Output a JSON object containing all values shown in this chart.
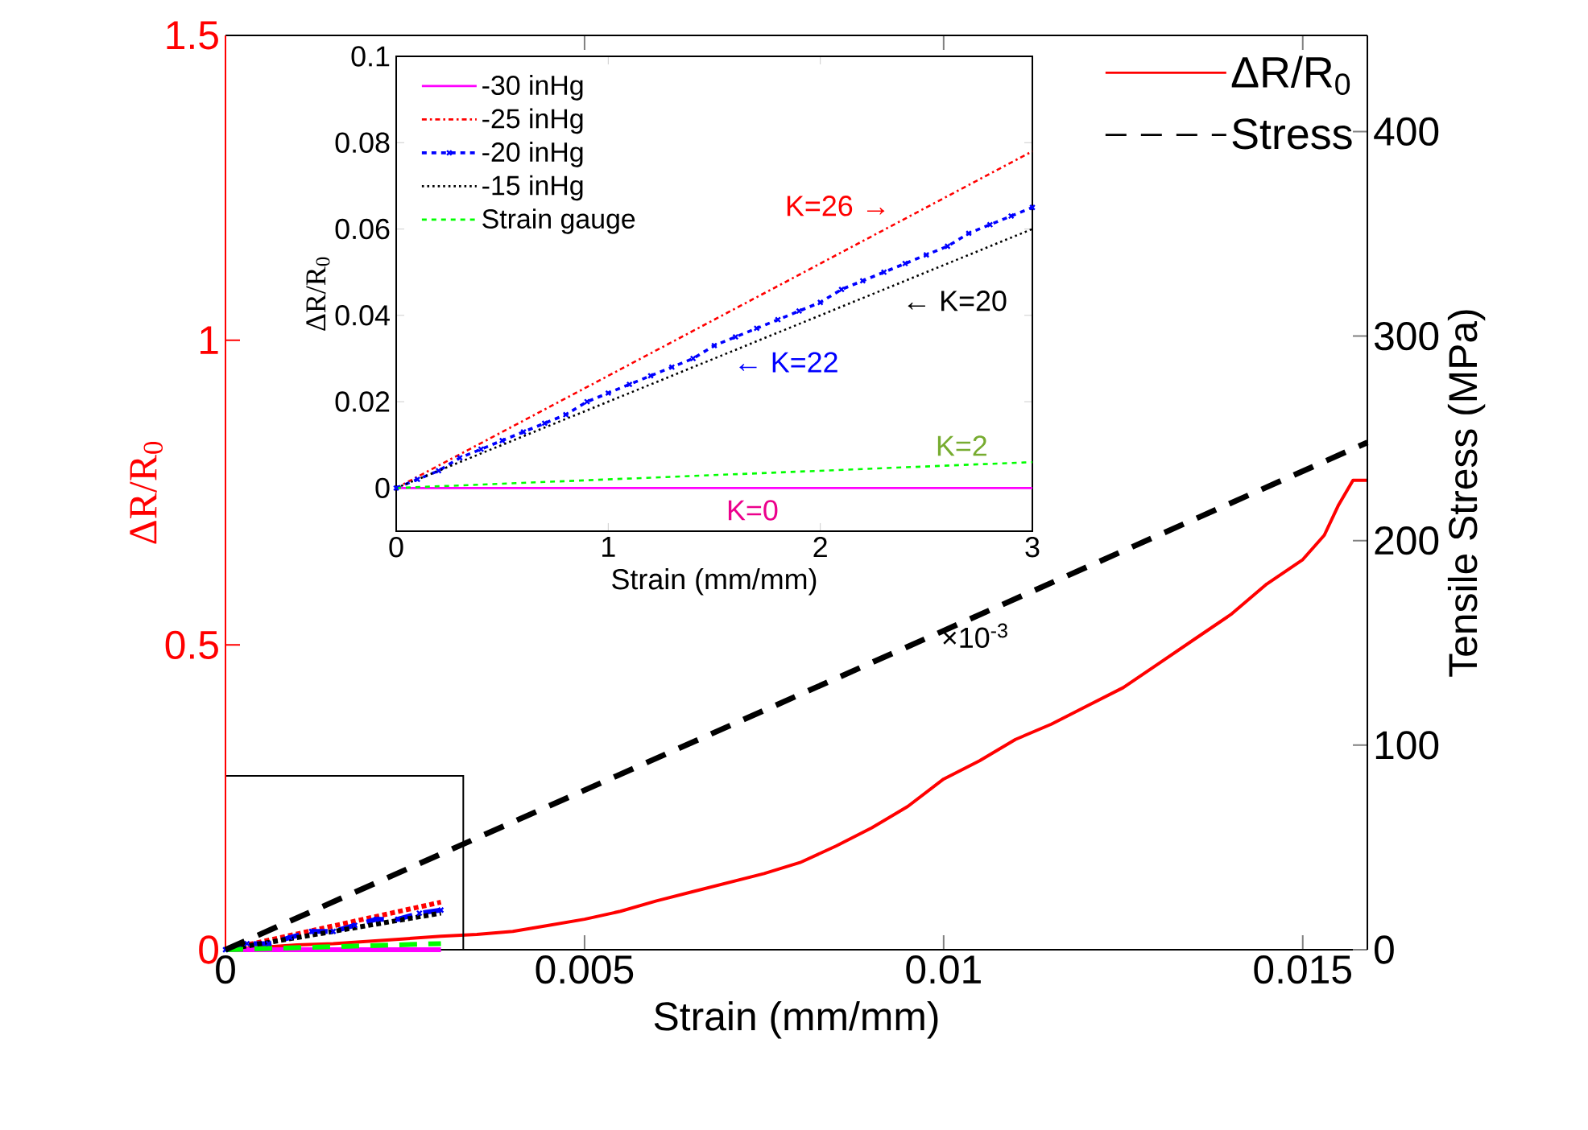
{
  "chart_data": [
    {
      "type": "line",
      "xlabel": "Strain (mm/mm)",
      "ylabel": "ΔR/R$_{0}$",
      "y2label": "Tensile Stress (MPa)",
      "xlim": [
        0,
        0.0159
      ],
      "ylim": [
        0,
        1.5
      ],
      "y2lim": [
        0,
        447
      ],
      "xticks": [
        0,
        0.005,
        0.01,
        0.015
      ],
      "yticks": [
        0,
        0.5,
        1,
        1.5
      ],
      "y2ticks": [
        0,
        100,
        200,
        300,
        400
      ],
      "legend": "top right",
      "series": [
        {
          "name": "ΔR/R$_{0}$",
          "color": "#ff0000",
          "line_style": "solid",
          "x": [
            0,
            0.0005,
            0.001,
            0.0015,
            0.002,
            0.0025,
            0.003,
            0.0035,
            0.004,
            0.0045,
            0.005,
            0.0055,
            0.006,
            0.0065,
            0.007,
            0.0075,
            0.008,
            0.0085,
            0.009,
            0.0095,
            0.01,
            0.0105,
            0.011,
            0.0115,
            0.012,
            0.0125,
            0.013,
            0.0135,
            0.014,
            0.0145,
            0.015,
            0.0153,
            0.0155,
            0.0157,
            0.0159
          ],
          "values": [
            0,
            0.004,
            0.008,
            0.01,
            0.014,
            0.018,
            0.022,
            0.025,
            0.03,
            0.04,
            0.05,
            0.063,
            0.08,
            0.095,
            0.11,
            0.125,
            0.143,
            0.17,
            0.2,
            0.235,
            0.28,
            0.31,
            0.345,
            0.37,
            0.4,
            0.43,
            0.47,
            0.51,
            0.55,
            0.6,
            0.64,
            0.68,
            0.73,
            0.77,
            0.77
          ]
        },
        {
          "name": "Stress",
          "color": "#000000",
          "line_style": "dashed",
          "axis": "y2",
          "x": [
            0,
            0.0159
          ],
          "values": [
            0,
            248
          ]
        },
        {
          "color": "#ff00ff",
          "line_style": "solid",
          "x": [
            0,
            0.003
          ],
          "values": [
            0,
            0
          ]
        },
        {
          "color": "#ff0000",
          "line_style": "dashdot",
          "x": [
            0,
            0.003
          ],
          "values": [
            0,
            0.078
          ]
        },
        {
          "color": "#0000ff",
          "line_style": "dashed",
          "marker": "cross",
          "x": [
            0,
            0.0003,
            0.0006,
            0.0009,
            0.0012,
            0.0015,
            0.0018,
            0.0021,
            0.0024,
            0.0027,
            0.003
          ],
          "values": [
            0,
            0.01,
            0.01,
            0.02,
            0.03,
            0.03,
            0.04,
            0.05,
            0.05,
            0.06,
            0.065
          ]
        },
        {
          "color": "#000000",
          "line_style": "dotted",
          "x": [
            0,
            0.003
          ],
          "values": [
            0,
            0.06
          ]
        },
        {
          "color": "#00ff00",
          "line_style": "dashed",
          "x": [
            0,
            0.003
          ],
          "values": [
            0,
            0.01
          ]
        }
      ]
    },
    {
      "type": "line",
      "xlabel": "Strain (mm/mm)",
      "ylabel": "ΔR/R$_{0}$",
      "xlim": [
        0,
        3
      ],
      "ylim": [
        -0.01,
        0.1
      ],
      "xticks": [
        0,
        1,
        2,
        3
      ],
      "yticks": [
        0,
        0.02,
        0.04,
        0.06,
        0.08,
        0.1
      ],
      "legend": "top left",
      "series": [
        {
          "name": "-30 inHg",
          "color": "#ff00ff",
          "line_style": "solid",
          "x": [
            0,
            3
          ],
          "values": [
            0,
            0
          ]
        },
        {
          "name": "-25 inHg",
          "color": "#ff0000",
          "line_style": "dashdot",
          "x": [
            0,
            3
          ],
          "values": [
            0,
            0.078
          ]
        },
        {
          "name": "-20 inHg",
          "color": "#0000ff",
          "line_style": "dashed",
          "marker": "cross",
          "x": [
            0,
            0.1,
            0.2,
            0.3,
            0.4,
            0.5,
            0.6,
            0.7,
            0.8,
            0.9,
            1,
            1.1,
            1.2,
            1.3,
            1.4,
            1.5,
            1.6,
            1.7,
            1.8,
            1.9,
            2,
            2.1,
            2.2,
            2.3,
            2.4,
            2.5,
            2.6,
            2.7,
            2.8,
            2.9,
            3
          ],
          "values": [
            0,
            0.002,
            0.004,
            0.007,
            0.009,
            0.011,
            0.013,
            0.015,
            0.017,
            0.02,
            0.022,
            0.024,
            0.026,
            0.028,
            0.03,
            0.033,
            0.035,
            0.037,
            0.039,
            0.041,
            0.043,
            0.046,
            0.048,
            0.05,
            0.052,
            0.054,
            0.056,
            0.059,
            0.061,
            0.063,
            0.065
          ]
        },
        {
          "name": "-15 inHg",
          "color": "#000000",
          "line_style": "dotted",
          "x": [
            0,
            3
          ],
          "values": [
            0,
            0.06
          ]
        },
        {
          "name": "Strain gauge",
          "color": "#00ff00",
          "line_style": "dashed",
          "x": [
            0,
            3
          ],
          "values": [
            0,
            0.006
          ]
        }
      ],
      "annotations": [
        "K=26 →",
        "← K=20",
        "← K=22",
        "K=2",
        "K=0",
        "×10$^{-3}$"
      ]
    }
  ]
}
